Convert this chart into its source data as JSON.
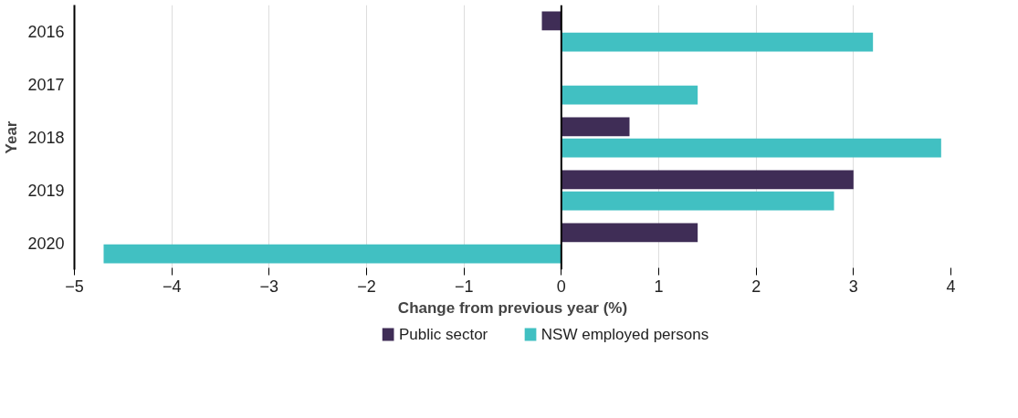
{
  "chart_data": {
    "type": "bar",
    "orientation": "horizontal",
    "xlabel": "Change from previous year (%)",
    "ylabel": "Year",
    "categories": [
      "2016",
      "2017",
      "2018",
      "2019",
      "2020"
    ],
    "series": [
      {
        "name": "Public sector",
        "color": "#3f2d56",
        "values": [
          -0.2,
          null,
          0.7,
          3.0,
          1.4
        ]
      },
      {
        "name": "NSW employed persons",
        "color": "#41c0c2",
        "values": [
          3.2,
          1.4,
          3.9,
          2.8,
          -4.7
        ]
      }
    ],
    "xlim": [
      -5,
      4
    ],
    "xticks": [
      -5,
      -4,
      -3,
      -2,
      -1,
      0,
      1,
      2,
      3,
      4
    ],
    "grid": "x",
    "legend": "bottom",
    "ref_lines": [
      {
        "axis": "x",
        "value": 0,
        "color": "#000000"
      }
    ]
  }
}
